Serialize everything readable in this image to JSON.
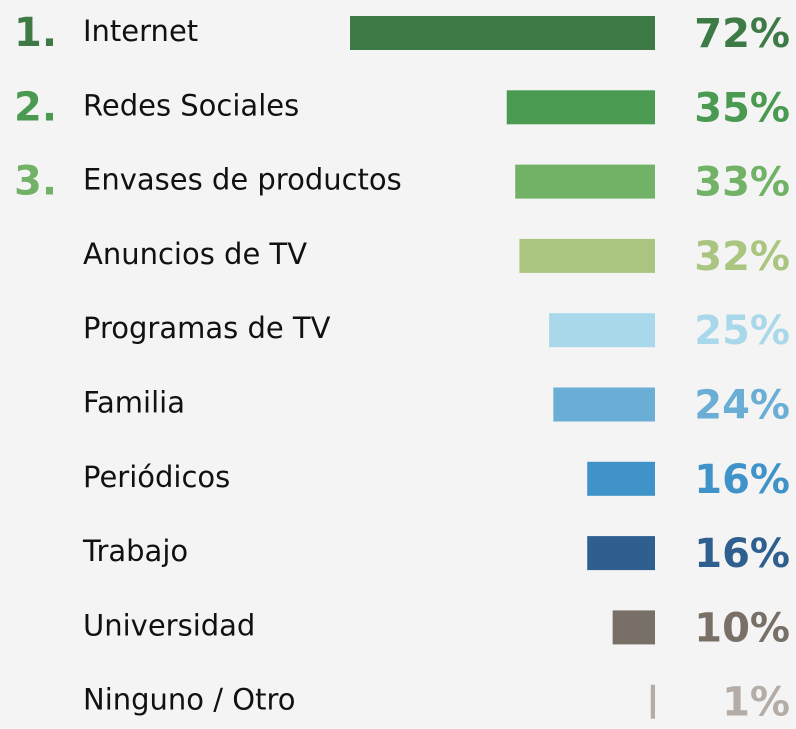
{
  "chart_data": {
    "type": "bar",
    "orientation": "horizontal",
    "ranks": [
      "1.",
      "2.",
      "3."
    ],
    "categories": [
      "Internet",
      "Redes Sociales",
      "Envases de productos",
      "Anuncios de TV",
      "Programas de TV",
      "Familia",
      "Periódicos",
      "Trabajo",
      "Universidad",
      "Ninguno / Otro"
    ],
    "values": [
      72,
      35,
      33,
      32,
      25,
      24,
      16,
      16,
      10,
      1
    ],
    "value_labels": [
      "72%",
      "35%",
      "33%",
      "32%",
      "25%",
      "24%",
      "16%",
      "16%",
      "10%",
      "1%"
    ],
    "colors": [
      "#3d7a46",
      "#4a9a52",
      "#72b267",
      "#a9c57f",
      "#a8d8ea",
      "#6aaed6",
      "#3f93c9",
      "#2e5f8f",
      "#786f66",
      "#b4aca6"
    ]
  }
}
